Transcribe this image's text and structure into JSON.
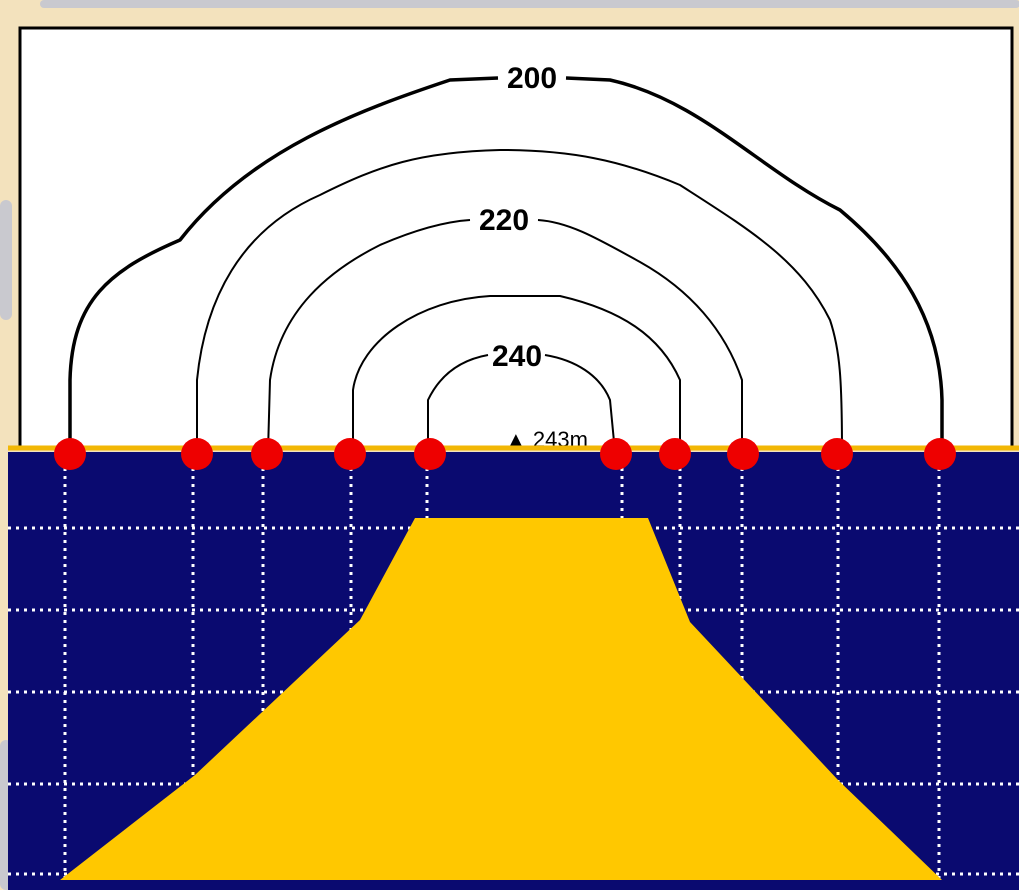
{
  "colors": {
    "page_background": "#f3e2bd",
    "decor_shapes": "#c9c9cf",
    "upper_panel_background": "#ffffff",
    "upper_panel_border": "#000000",
    "ground_line": "#f2b705",
    "subsurface_fill": "#0a0a70",
    "anomaly_body": "#ffc800",
    "grid_lines": "#ffffff",
    "contour_lines": "#000000",
    "station_markers": "#ee0000"
  },
  "contours": [
    {
      "value": 200,
      "label": "200",
      "line_weight": "thick"
    },
    {
      "value": 210,
      "label": "",
      "line_weight": "thin"
    },
    {
      "value": 220,
      "label": "220",
      "line_weight": "thin"
    },
    {
      "value": 230,
      "label": "",
      "line_weight": "thin"
    },
    {
      "value": 240,
      "label": "240",
      "line_weight": "thin"
    }
  ],
  "peak": {
    "symbol": "▲",
    "value": 243,
    "label": "243m"
  },
  "station_marker_count": 10,
  "subsurface": {
    "grid_style": "dotted",
    "anomaly_shape": "trapezoid"
  }
}
